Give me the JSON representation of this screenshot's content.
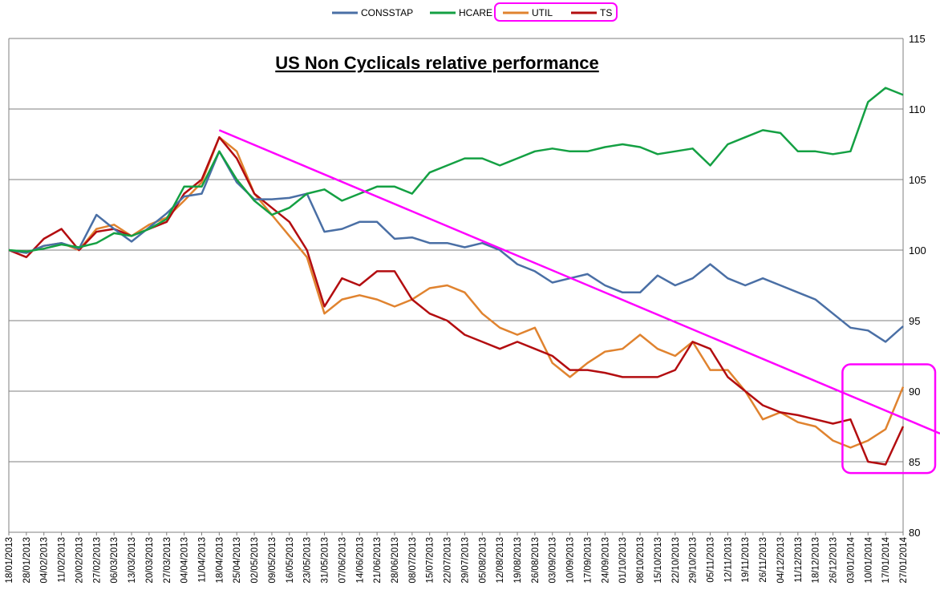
{
  "chart_data": {
    "type": "line",
    "title": "US Non Cyclicals relative performance",
    "xlabel": "",
    "ylabel": "",
    "ylim": [
      80,
      115
    ],
    "y_ticks": [
      80,
      85,
      90,
      95,
      100,
      105,
      110,
      115
    ],
    "y_axis_side": "right",
    "grid": "horizontal",
    "legend_placement": "top",
    "x_ticks": [
      "18/01/2013",
      "28/01/2013",
      "04/02/2013",
      "11/02/2013",
      "20/02/2013",
      "27/02/2013",
      "06/03/2013",
      "13/03/2013",
      "20/03/2013",
      "27/03/2013",
      "04/04/2013",
      "11/04/2013",
      "18/04/2013",
      "25/04/2013",
      "02/05/2013",
      "09/05/2013",
      "16/05/2013",
      "23/05/2013",
      "31/05/2013",
      "07/06/2013",
      "14/06/2013",
      "21/06/2013",
      "28/06/2013",
      "08/07/2013",
      "15/07/2013",
      "22/07/2013",
      "29/07/2013",
      "05/08/2013",
      "12/08/2013",
      "19/08/2013",
      "26/08/2013",
      "03/09/2013",
      "10/09/2013",
      "17/09/2013",
      "24/09/2013",
      "01/10/2013",
      "08/10/2013",
      "15/10/2013",
      "22/10/2013",
      "29/10/2013",
      "05/11/2013",
      "12/11/2013",
      "19/11/2013",
      "26/11/2013",
      "04/12/2013",
      "11/12/2013",
      "18/12/2013",
      "26/12/2013",
      "03/01/2014",
      "10/01/2014",
      "17/01/2014",
      "27/01/2014"
    ],
    "series": [
      {
        "name": "CONSSTAP",
        "color": "#4a6fa5",
        "values": [
          100.0,
          99.8,
          100.3,
          100.5,
          100.1,
          102.5,
          101.5,
          100.6,
          101.6,
          102.6,
          103.8,
          104.0,
          107.0,
          104.8,
          103.6,
          103.6,
          103.7,
          104.0,
          101.3,
          101.5,
          102.0,
          102.0,
          100.8,
          100.9,
          100.5,
          100.5,
          100.2,
          100.5,
          100.0,
          99.0,
          98.5,
          97.7,
          98.0,
          98.3,
          97.5,
          97.0,
          97.0,
          98.2,
          97.5,
          98.0,
          99.0,
          98.0,
          97.5,
          98.0,
          97.5,
          97.0,
          96.5,
          95.5,
          94.5,
          94.3,
          93.5,
          94.6
        ]
      },
      {
        "name": "HCARE",
        "color": "#14a043",
        "values": [
          100.0,
          99.9,
          100.1,
          100.4,
          100.2,
          100.5,
          101.2,
          101.0,
          101.5,
          102.2,
          104.5,
          104.5,
          107.0,
          105.0,
          103.5,
          102.5,
          103.0,
          104.0,
          104.3,
          103.5,
          104.0,
          104.5,
          104.5,
          104.0,
          105.5,
          106.0,
          106.5,
          106.5,
          106.0,
          106.5,
          107.0,
          107.2,
          107.0,
          107.0,
          107.3,
          107.5,
          107.3,
          106.8,
          107.0,
          107.2,
          106.0,
          107.5,
          108.0,
          108.5,
          108.3,
          107.0,
          107.0,
          106.8,
          107.0,
          110.5,
          111.5,
          111.0
        ]
      },
      {
        "name": "UTIL",
        "color": "#e0832f",
        "values": [
          100.0,
          99.8,
          100.3,
          100.5,
          100.0,
          101.5,
          101.8,
          101.0,
          101.8,
          102.3,
          103.5,
          104.8,
          108.0,
          107.0,
          104.0,
          102.5,
          101.0,
          99.5,
          95.5,
          96.5,
          96.8,
          96.5,
          96.0,
          96.5,
          97.3,
          97.5,
          97.0,
          95.5,
          94.5,
          94.0,
          94.5,
          92.0,
          91.0,
          92.0,
          92.8,
          93.0,
          94.0,
          93.0,
          92.5,
          93.5,
          91.5,
          91.5,
          90.0,
          88.0,
          88.5,
          87.8,
          87.5,
          86.5,
          86.0,
          86.5,
          87.3,
          90.3
        ]
      },
      {
        "name": "TS",
        "color": "#b30d10",
        "values": [
          100.0,
          99.5,
          100.8,
          101.5,
          100.0,
          101.3,
          101.5,
          101.0,
          101.5,
          102.0,
          104.0,
          105.0,
          108.0,
          106.5,
          104.0,
          103.0,
          102.0,
          100.0,
          96.0,
          98.0,
          97.5,
          98.5,
          98.5,
          96.5,
          95.5,
          95.0,
          94.0,
          93.5,
          93.0,
          93.5,
          93.0,
          92.5,
          91.5,
          91.5,
          91.3,
          91.0,
          91.0,
          91.0,
          91.5,
          93.5,
          93.0,
          91.0,
          90.0,
          89.0,
          88.5,
          88.3,
          88.0,
          87.7,
          88.0,
          85.0,
          84.8,
          87.5
        ]
      }
    ],
    "annotations": [
      {
        "type": "trendline",
        "color": "#ff00ff",
        "from": {
          "x": "18/04/2013",
          "y": 108.5
        },
        "to_y_at_right_edge": 87.0
      },
      {
        "type": "rounded-box",
        "color": "#ff00ff",
        "around": "UTIL and TS at the most recent dates"
      },
      {
        "type": "rounded-box",
        "color": "#ff00ff",
        "around": "legend entries UTIL and TS"
      }
    ]
  }
}
